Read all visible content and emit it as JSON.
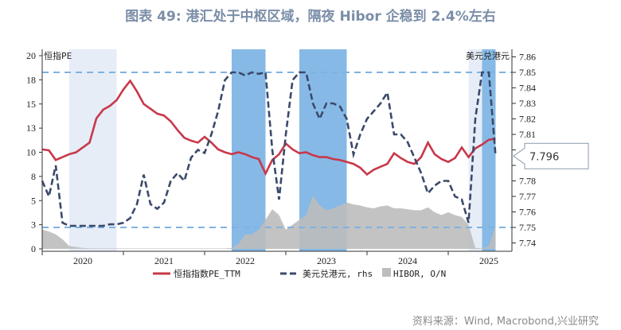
{
  "title": "图表 49: 港汇处于中枢区域，隔夜 Hibor 企稳到 2.4%左右",
  "source": "资料来源：Wind, Macrobond,兴业研究",
  "chart_data": {
    "type": "line",
    "left_axis_label": "恒指PE",
    "right_axis_label": "美元兑港元",
    "left_ylim": [
      0,
      20
    ],
    "left_ticks": [
      {
        "v": 0,
        "label": "0"
      },
      {
        "v": 2.5,
        "label": "3"
      },
      {
        "v": 5,
        "label": "5"
      },
      {
        "v": 7.5,
        "label": "8"
      },
      {
        "v": 10,
        "label": "10"
      },
      {
        "v": 12.5,
        "label": "13"
      },
      {
        "v": 15,
        "label": "15"
      },
      {
        "v": 17.5,
        "label": "18"
      },
      {
        "v": 20,
        "label": "20"
      }
    ],
    "right_ylim": [
      7.735,
      7.865
    ],
    "right_ticks": [
      "7.74",
      "7.75",
      "7.76",
      "7.77",
      "7.78",
      "7.79",
      "7.80",
      "7.81",
      "7.82",
      "7.83",
      "7.84",
      "7.85",
      "7.86"
    ],
    "right_tick_labels": [
      "7.74",
      "7.75",
      "7.76",
      "7.77",
      "7.78",
      "",
      "",
      "7.81",
      "7.82",
      "7.83",
      "7.84",
      "7.85",
      "7.86"
    ],
    "x_years": [
      "2020",
      "2021",
      "2022",
      "2023",
      "2024",
      "2025"
    ],
    "x_range": [
      "2020-01",
      "2025-10"
    ],
    "reference_lines_rhs": [
      7.85,
      7.75
    ],
    "callout": {
      "value": "7.796",
      "axis": "rhs"
    },
    "shaded_periods": [
      {
        "start": "2020-05",
        "end": "2020-12",
        "color": "#e6edf7"
      },
      {
        "start": "2022-05",
        "end": "2022-10",
        "color": "#86b9e6"
      },
      {
        "start": "2023-03",
        "end": "2023-10",
        "color": "#86b9e6"
      },
      {
        "start": "2025-04",
        "end": "2025-06",
        "color": "#e6edf7"
      },
      {
        "start": "2025-06",
        "end": "2025-08",
        "color": "#86b9e6"
      }
    ],
    "x": [
      "2020-01",
      "2020-02",
      "2020-03",
      "2020-04",
      "2020-05",
      "2020-06",
      "2020-07",
      "2020-08",
      "2020-09",
      "2020-10",
      "2020-11",
      "2020-12",
      "2021-01",
      "2021-02",
      "2021-03",
      "2021-04",
      "2021-05",
      "2021-06",
      "2021-07",
      "2021-08",
      "2021-09",
      "2021-10",
      "2021-11",
      "2021-12",
      "2022-01",
      "2022-02",
      "2022-03",
      "2022-04",
      "2022-05",
      "2022-06",
      "2022-07",
      "2022-08",
      "2022-09",
      "2022-10",
      "2022-11",
      "2022-12",
      "2023-01",
      "2023-02",
      "2023-03",
      "2023-04",
      "2023-05",
      "2023-06",
      "2023-07",
      "2023-08",
      "2023-09",
      "2023-10",
      "2023-11",
      "2023-12",
      "2024-01",
      "2024-02",
      "2024-03",
      "2024-04",
      "2024-05",
      "2024-06",
      "2024-07",
      "2024-08",
      "2024-09",
      "2024-10",
      "2024-11",
      "2024-12",
      "2025-01",
      "2025-02",
      "2025-03",
      "2025-04",
      "2025-05",
      "2025-06",
      "2025-07",
      "2025-08"
    ],
    "series": [
      {
        "name": "恒指指数PE_TTM",
        "axis": "left",
        "style": "solid",
        "color": "#c8384a",
        "values": [
          10.3,
          10.2,
          9.2,
          9.5,
          9.8,
          10.0,
          10.5,
          11.0,
          13.5,
          14.4,
          14.8,
          15.4,
          16.5,
          17.4,
          16.3,
          15.0,
          14.5,
          14.0,
          13.8,
          13.2,
          12.3,
          11.5,
          11.2,
          11.0,
          11.6,
          11.0,
          10.3,
          10.0,
          9.8,
          10.0,
          9.8,
          9.5,
          9.3,
          7.8,
          9.2,
          9.8,
          10.9,
          10.3,
          9.9,
          10.0,
          9.7,
          9.5,
          9.5,
          9.3,
          9.2,
          9.0,
          8.8,
          8.4,
          7.7,
          8.2,
          8.5,
          8.8,
          9.9,
          9.4,
          9.0,
          8.8,
          9.5,
          11.0,
          9.8,
          9.3,
          9.0,
          9.4,
          10.5,
          9.5,
          10.4,
          10.8,
          11.3,
          11.4
        ]
      },
      {
        "name": "美元兑港元, rhs",
        "axis": "right",
        "style": "dashed",
        "color": "#3b4a6b",
        "values": [
          7.78,
          7.77,
          7.79,
          7.753,
          7.751,
          7.751,
          7.751,
          7.751,
          7.751,
          7.751,
          7.752,
          7.752,
          7.753,
          7.756,
          7.765,
          7.784,
          7.765,
          7.762,
          7.766,
          7.78,
          7.785,
          7.78,
          7.795,
          7.8,
          7.798,
          7.81,
          7.825,
          7.845,
          7.85,
          7.85,
          7.848,
          7.85,
          7.849,
          7.85,
          7.8,
          7.768,
          7.81,
          7.845,
          7.85,
          7.85,
          7.83,
          7.82,
          7.83,
          7.83,
          7.828,
          7.82,
          7.797,
          7.81,
          7.82,
          7.825,
          7.83,
          7.837,
          7.81,
          7.81,
          7.805,
          7.795,
          7.785,
          7.772,
          7.777,
          7.78,
          7.78,
          7.77,
          7.768,
          7.753,
          7.82,
          7.85,
          7.85,
          7.796
        ]
      },
      {
        "name": "HIBOR, O/N",
        "axis": "left",
        "style": "area",
        "color": "#bdbdbd",
        "values": [
          2.0,
          1.8,
          1.5,
          1.0,
          0.3,
          0.2,
          0.1,
          0.05,
          0.05,
          0.05,
          0.05,
          0.05,
          0.05,
          0.05,
          0.05,
          0.05,
          0.05,
          0.05,
          0.05,
          0.05,
          0.05,
          0.05,
          0.05,
          0.05,
          0.05,
          0.05,
          0.05,
          0.05,
          0.1,
          0.5,
          1.5,
          1.5,
          2.0,
          3.0,
          4.1,
          3.5,
          2.0,
          2.5,
          3.0,
          3.5,
          5.5,
          4.5,
          4.0,
          4.2,
          4.5,
          4.8,
          4.6,
          4.5,
          4.3,
          4.2,
          4.4,
          4.5,
          4.2,
          4.2,
          4.1,
          4.0,
          4.0,
          4.3,
          3.8,
          3.5,
          3.8,
          3.5,
          3.3,
          2.5,
          0.1,
          0.05,
          0.3,
          2.4
        ]
      }
    ],
    "legend": [
      "恒指指数PE_TTM",
      "美元兑港元, rhs",
      "HIBOR, O/N"
    ],
    "legend_placement": "bottom"
  }
}
